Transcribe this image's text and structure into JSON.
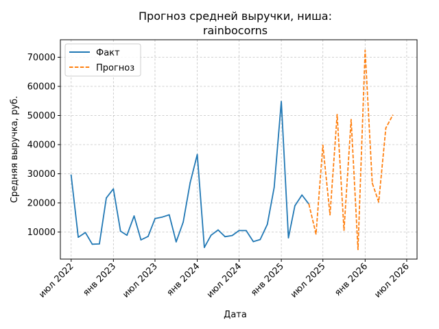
{
  "chart_data": {
    "type": "line",
    "title_line1": "Прогноз средней выручки, ниша:",
    "title_line2": "rainbocorns",
    "xlabel": "Дата",
    "ylabel": "Средняя выручка, руб.",
    "x_ticks": [
      "июл 2022",
      "янв 2023",
      "июл 2023",
      "янв 2024",
      "июл 2024",
      "янв 2025",
      "июл 2025",
      "янв 2026",
      "июл 2026"
    ],
    "y_ticks": [
      10000,
      20000,
      30000,
      40000,
      50000,
      60000,
      70000
    ],
    "xlim": [
      "2022-05-15",
      "2026-08-15"
    ],
    "ylim": [
      700,
      76000
    ],
    "grid": true,
    "legend_position": "upper left",
    "colors": {
      "fact": "#1f77b4",
      "forecast": "#ff7f0e",
      "grid": "#b0b0b0"
    },
    "series": [
      {
        "name": "Факт",
        "style": "solid",
        "x": [
          "2022-07-01",
          "2022-08-01",
          "2022-09-01",
          "2022-10-01",
          "2022-11-01",
          "2022-12-01",
          "2023-01-01",
          "2023-02-01",
          "2023-03-01",
          "2023-04-01",
          "2023-05-01",
          "2023-06-01",
          "2023-07-01",
          "2023-08-01",
          "2023-09-01",
          "2023-10-01",
          "2023-11-01",
          "2023-12-01",
          "2024-01-01",
          "2024-02-01",
          "2024-03-01",
          "2024-04-01",
          "2024-05-01",
          "2024-06-01",
          "2024-07-01",
          "2024-08-01",
          "2024-09-01",
          "2024-10-01",
          "2024-11-01",
          "2024-12-01",
          "2025-01-01",
          "2025-02-01",
          "2025-03-01",
          "2025-04-01",
          "2025-05-01"
        ],
        "y": [
          29500,
          8200,
          9800,
          5800,
          5900,
          21700,
          24800,
          10300,
          8900,
          15500,
          7300,
          8500,
          14600,
          15100,
          15900,
          6600,
          13400,
          26900,
          36600,
          4700,
          8900,
          10700,
          8400,
          8800,
          10500,
          10500,
          6700,
          7400,
          12600,
          25300,
          54800,
          8000,
          19000,
          22700,
          19600
        ]
      },
      {
        "name": "Прогноз",
        "style": "dashed",
        "x": [
          "2025-05-01",
          "2025-06-01",
          "2025-07-01",
          "2025-08-01",
          "2025-09-01",
          "2025-10-01",
          "2025-11-01",
          "2025-12-01",
          "2026-01-01",
          "2026-02-01",
          "2026-03-01",
          "2026-04-01",
          "2026-05-01"
        ],
        "y": [
          19600,
          9300,
          39800,
          15900,
          50300,
          10600,
          48600,
          4000,
          72400,
          26800,
          20300,
          45700,
          50100
        ]
      }
    ]
  }
}
